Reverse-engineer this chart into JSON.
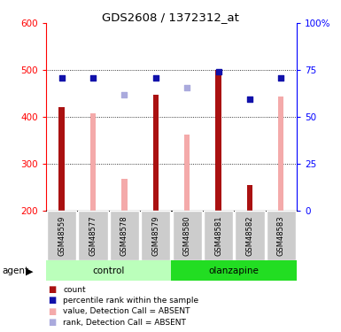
{
  "title": "GDS2608 / 1372312_at",
  "samples": [
    "GSM48559",
    "GSM48577",
    "GSM48578",
    "GSM48579",
    "GSM48580",
    "GSM48581",
    "GSM48582",
    "GSM48583"
  ],
  "bar_values_dark": [
    422,
    null,
    null,
    447,
    null,
    500,
    255,
    null
  ],
  "bar_values_light": [
    null,
    407,
    268,
    null,
    362,
    null,
    null,
    443
  ],
  "dot_dark_blue": [
    484,
    484,
    null,
    484,
    null,
    496,
    438,
    484
  ],
  "dot_light_blue": [
    null,
    null,
    447,
    null,
    462,
    null,
    null,
    null
  ],
  "ylim": [
    200,
    600
  ],
  "y2lim": [
    0,
    100
  ],
  "yticks_left": [
    200,
    300,
    400,
    500,
    600
  ],
  "yticks_right": [
    0,
    25,
    50,
    75,
    100
  ],
  "ytick_labels_right": [
    "0",
    "25",
    "50",
    "75",
    "100%"
  ],
  "color_dark_red": "#AA1111",
  "color_light_pink": "#F4AAAA",
  "color_dark_blue": "#1111AA",
  "color_light_blue": "#AAAADD",
  "color_control_bg": "#BBFFBB",
  "color_olanzapine_bg": "#22DD22",
  "color_sample_bg": "#CCCCCC",
  "legend_items": [
    "count",
    "percentile rank within the sample",
    "value, Detection Call = ABSENT",
    "rank, Detection Call = ABSENT"
  ]
}
